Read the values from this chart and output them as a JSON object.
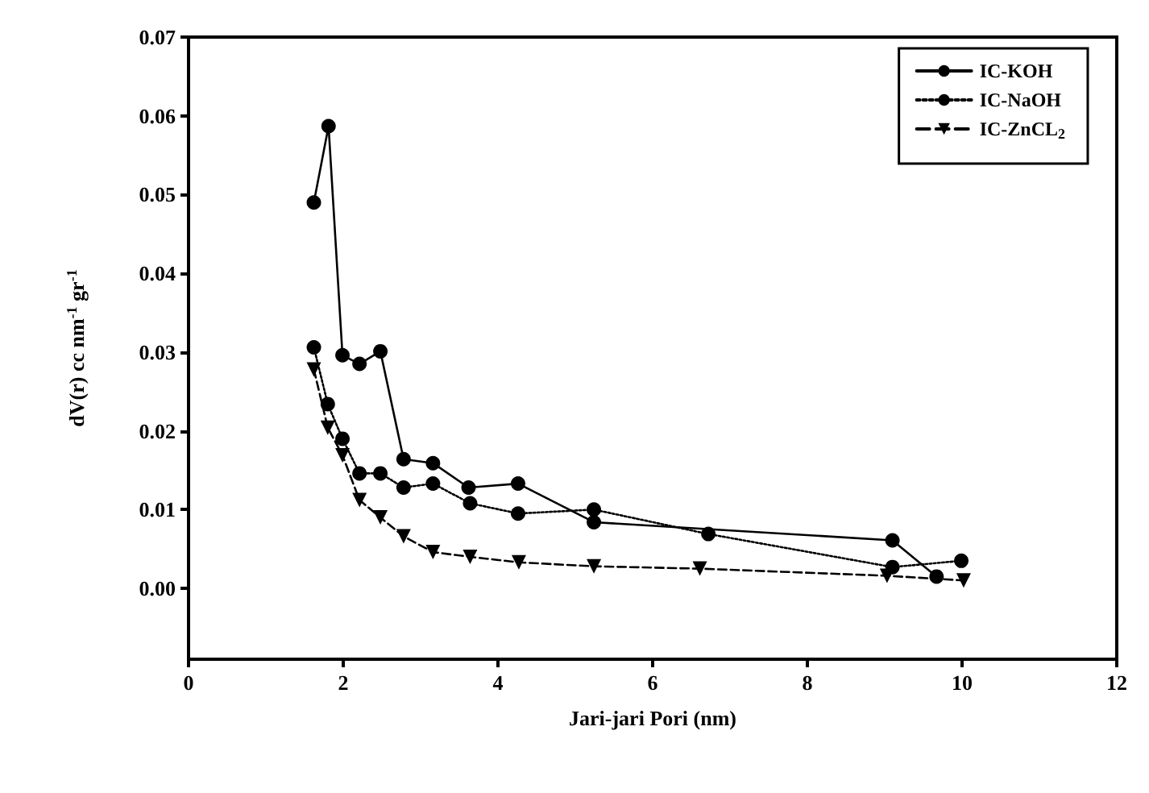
{
  "chart_data": {
    "type": "line",
    "xlabel": "Jari-jari Pori (nm)",
    "ylabel": "dV(r) cc nm$^{-1}$ gr$^{-1}$",
    "xlim": [
      0,
      12
    ],
    "xticks": [
      0,
      2,
      4,
      6,
      8,
      10,
      12
    ],
    "ylim": [
      -0.009,
      0.07
    ],
    "yticks": [
      {
        "value": 0,
        "label": "0.00"
      },
      {
        "value": 0.01,
        "label": "0.01"
      },
      {
        "value": 0.02,
        "label": "0.02"
      },
      {
        "value": 0.03,
        "label": "0.03"
      },
      {
        "value": 0.04,
        "label": "0.04"
      },
      {
        "value": 0.05,
        "label": "0.05"
      },
      {
        "value": 0.06,
        "label": "0.06"
      },
      {
        "value": 0.07,
        "label": "0.07"
      }
    ],
    "grid": false,
    "legend": "top right",
    "series": [
      {
        "name": "IC-KOH",
        "color": "#000000",
        "marker": "circle",
        "line_style": "solid",
        "x": [
          1.62,
          1.81,
          1.99,
          2.21,
          2.48,
          2.78,
          3.16,
          3.62,
          4.26,
          5.24,
          9.1,
          9.67
        ],
        "values": [
          0.049,
          0.0587,
          0.0296,
          0.0285,
          0.0301,
          0.0164,
          0.0159,
          0.0128,
          0.0133,
          0.0084,
          0.0061,
          0.0015
        ]
      },
      {
        "name": "IC-NaOH",
        "color": "#000000",
        "marker": "circle",
        "line_style": "dotted",
        "x": [
          1.62,
          1.8,
          1.99,
          2.21,
          2.48,
          2.78,
          3.16,
          3.64,
          4.26,
          5.24,
          6.72,
          9.1,
          9.99
        ],
        "values": [
          0.0306,
          0.0234,
          0.019,
          0.0146,
          0.0146,
          0.0128,
          0.0133,
          0.0108,
          0.0095,
          0.01,
          0.0069,
          0.0027,
          0.0035
        ]
      },
      {
        "name": "IC-ZnCL$_{2}$",
        "color": "#000000",
        "marker": "triangle",
        "line_style": "dashed",
        "x": [
          1.62,
          1.8,
          1.99,
          2.21,
          2.48,
          2.78,
          3.16,
          3.64,
          4.27,
          5.24,
          6.61,
          9.03,
          10.02
        ],
        "values": [
          0.0278,
          0.0204,
          0.0169,
          0.0112,
          0.009,
          0.0066,
          0.0046,
          0.004,
          0.0033,
          0.0028,
          0.0025,
          0.0016,
          0.001
        ]
      }
    ]
  }
}
